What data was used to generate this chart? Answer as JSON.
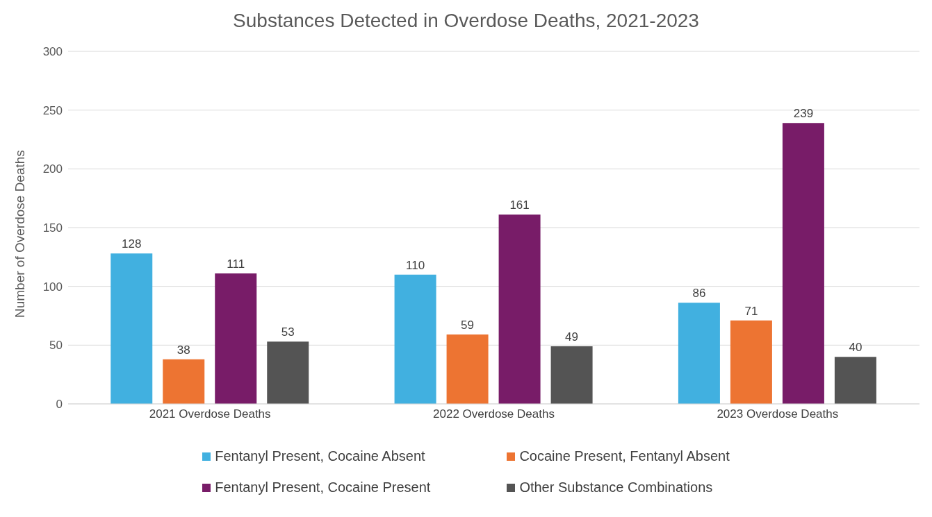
{
  "chart_data": {
    "type": "bar",
    "title": "Substances Detected in Overdose Deaths, 2021-2023",
    "ylabel": "Number of Overdose Deaths",
    "categories": [
      "2021 Overdose Deaths",
      "2022 Overdose Deaths",
      "2023 Overdose Deaths"
    ],
    "series": [
      {
        "name": "Fentanyl Present, Cocaine Absent",
        "color": "#41b0e0",
        "values": [
          128,
          110,
          86
        ]
      },
      {
        "name": "Cocaine Present, Fentanyl Absent",
        "color": "#ed7432",
        "values": [
          38,
          59,
          71
        ]
      },
      {
        "name": "Fentanyl Present, Cocaine Present",
        "color": "#781c68",
        "values": [
          111,
          161,
          239
        ]
      },
      {
        "name": "Other Substance Combinations",
        "color": "#545454",
        "values": [
          53,
          49,
          40
        ]
      }
    ],
    "ylim": [
      0,
      300
    ],
    "yticks": [
      0,
      50,
      100,
      150,
      200,
      250,
      300
    ],
    "grid": "y",
    "legend": "bottom",
    "data_labels": true
  }
}
